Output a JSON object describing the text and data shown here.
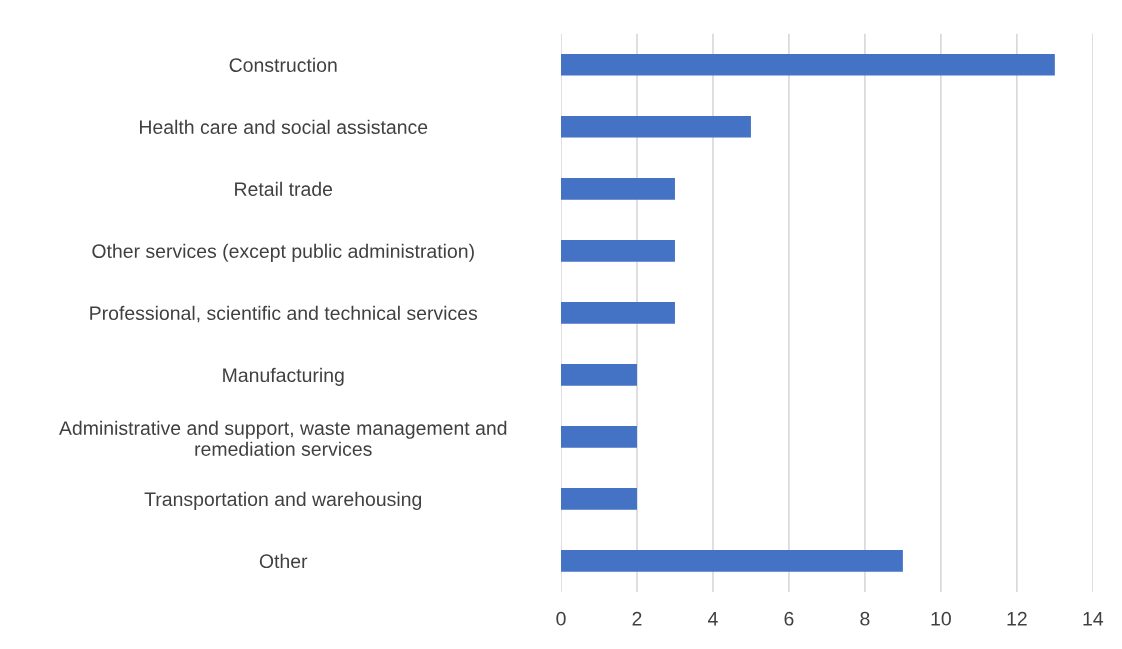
{
  "chart_data": {
    "type": "bar",
    "orientation": "horizontal",
    "categories": [
      "Construction",
      "Health care and social assistance",
      "Retail trade",
      "Other services (except public administration)",
      "Professional, scientific and technical services",
      "Manufacturing",
      "Administrative and support, waste management and\nremediation services",
      "Transportation and warehousing",
      "Other"
    ],
    "values": [
      13,
      5,
      3,
      3,
      3,
      2,
      2,
      2,
      9
    ],
    "color": "#4472c4",
    "xlim": [
      0,
      14
    ],
    "xticks": [
      0,
      2,
      4,
      6,
      8,
      10,
      12,
      14
    ],
    "grid": "x",
    "legend": false
  }
}
